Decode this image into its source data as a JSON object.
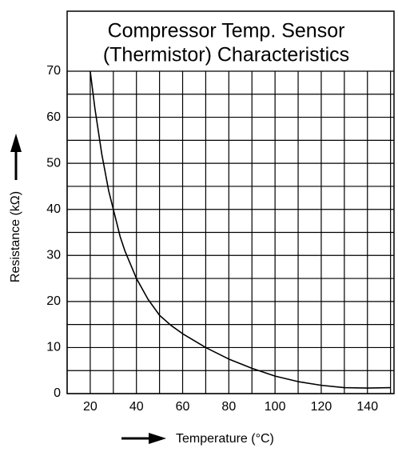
{
  "chart_data": {
    "type": "line",
    "title_lines": [
      "Compressor Temp. Sensor",
      "(Thermistor) Characteristics"
    ],
    "x_label": "Temperature (°C)",
    "y_label": "Resistance (kΩ)",
    "x": [
      20,
      22,
      25,
      28,
      30,
      33,
      35,
      40,
      45,
      50,
      55,
      60,
      70,
      80,
      90,
      100,
      110,
      120,
      130,
      140,
      150
    ],
    "values": [
      70,
      62,
      52,
      44,
      40,
      34,
      31,
      25,
      20.5,
      17,
      14.8,
      13,
      10,
      7.5,
      5.5,
      3.8,
      2.6,
      1.8,
      1.3,
      1.2,
      1.3
    ],
    "color": "#000000",
    "xlim": [
      10,
      151.5
    ],
    "ylim": [
      0,
      70
    ],
    "xticks": [
      20,
      40,
      60,
      80,
      100,
      120,
      140
    ],
    "yticks": [
      0,
      10,
      20,
      30,
      40,
      50,
      60,
      70
    ],
    "x_minor_ticks": [
      10,
      30,
      50,
      70,
      90,
      110,
      130,
      150
    ],
    "y_minor_ticks": [
      5,
      15,
      25,
      35,
      45,
      55,
      65
    ],
    "grid": true
  }
}
